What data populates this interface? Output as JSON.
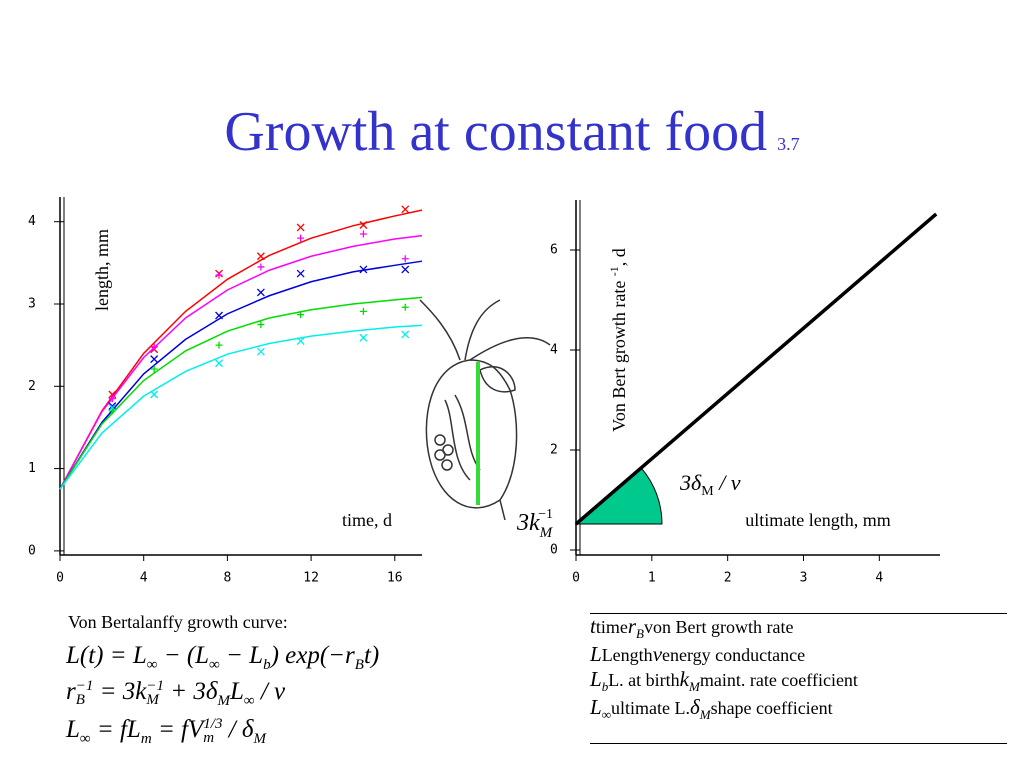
{
  "title": "Growth at constant food",
  "title_note": "3.7",
  "chart_data": [
    {
      "type": "scatter",
      "x_label": "time, d",
      "y_label": "length, mm",
      "xlim": [
        0,
        17.3
      ],
      "ylim": [
        -0.05,
        4.3
      ],
      "xticks": [
        0,
        4,
        8,
        12,
        16
      ],
      "yticks": [
        0,
        1,
        2,
        3,
        4
      ],
      "x": [
        2.5,
        4.5,
        7.6,
        9.6,
        11.5,
        14.5,
        16.5
      ],
      "fit_x": [
        0,
        2,
        4,
        6,
        8,
        10,
        12,
        14,
        16,
        17.3
      ],
      "series": [
        {
          "color": "#ff0000",
          "marker": "x",
          "values": [
            1.9,
            2.45,
            3.37,
            3.58,
            3.93,
            3.96,
            4.15
          ],
          "fit": [
            0.75,
            1.7,
            2.4,
            2.91,
            3.3,
            3.59,
            3.8,
            3.95,
            4.07,
            4.14
          ]
        },
        {
          "color": "#ff00ff",
          "marker": "+",
          "values": [
            1.85,
            2.48,
            3.35,
            3.45,
            3.8,
            3.85,
            3.55
          ],
          "fit": [
            0.75,
            1.69,
            2.35,
            2.83,
            3.17,
            3.41,
            3.58,
            3.7,
            3.79,
            3.83
          ]
        },
        {
          "color": "#0000dd",
          "marker": "x",
          "values": [
            1.76,
            2.33,
            2.86,
            3.14,
            3.37,
            3.42,
            3.42
          ],
          "fit": [
            0.75,
            1.56,
            2.15,
            2.57,
            2.88,
            3.1,
            3.27,
            3.39,
            3.47,
            3.52
          ]
        },
        {
          "color": "#00dd00",
          "marker": "+",
          "values": [
            1.7,
            2.21,
            2.5,
            2.75,
            2.87,
            2.91,
            2.96
          ],
          "fit": [
            0.75,
            1.54,
            2.07,
            2.43,
            2.67,
            2.83,
            2.93,
            3.0,
            3.05,
            3.08
          ]
        },
        {
          "color": "#00eeee",
          "marker": "x",
          "values": [
            1.74,
            1.9,
            2.28,
            2.42,
            2.55,
            2.59,
            2.63
          ],
          "fit": [
            0.75,
            1.43,
            1.88,
            2.18,
            2.39,
            2.52,
            2.61,
            2.67,
            2.72,
            2.74
          ]
        }
      ]
    },
    {
      "type": "line",
      "x_label": "ultimate length, mm",
      "y_label": [
        "Von Bert growth rate ",
        "-1",
        ", d"
      ],
      "xlim": [
        0,
        4.8
      ],
      "ylim": [
        -0.1,
        7
      ],
      "xticks": [
        0,
        1,
        2,
        3,
        4
      ],
      "yticks": [
        0,
        2,
        4,
        6
      ],
      "x": [
        0,
        4.75
      ],
      "series": [
        {
          "color": "#000000",
          "values": [
            0.52,
            6.72
          ]
        }
      ],
      "sector_color": "#00c98d",
      "annotations": [
        [
          "3δ",
          "M",
          " / v"
        ],
        [
          "3k",
          "M",
          "−1"
        ]
      ]
    }
  ],
  "caption": "Von Bertalanffy growth curve:",
  "equations": [
    [
      "L(t) = L",
      "∞",
      " − (L",
      "∞",
      " − L",
      "b",
      ") exp(−r",
      "B",
      "t)"
    ],
    [
      "r",
      "B",
      "−1",
      " = 3k",
      "M",
      "−1",
      " + 3δ",
      "M",
      "L",
      "∞",
      " / v"
    ],
    [
      "L",
      "∞",
      " = fL",
      "m",
      " = fV",
      "m",
      "1/3",
      " / δ",
      "M"
    ]
  ],
  "table": {
    "rows": [
      {
        "symbol": "t",
        "name": "time",
        "symbol2": "r",
        "symbol2_sub": "B",
        "name2": "von Bert growth rate"
      },
      {
        "symbol": "L",
        "name": "Length",
        "symbol2": "v",
        "name2": "energy conductance"
      },
      {
        "symbol": "L",
        "symbol_sub": "b",
        "name": "L. at birth",
        "symbol2": "k",
        "symbol2_sub": "M",
        "name2": "maint. rate coefficient"
      },
      {
        "symbol": "L",
        "symbol_sub": "∞",
        "name": "ultimate L.",
        "symbol2": "δ",
        "symbol2_sub": "M",
        "name2": "shape coefficient"
      }
    ]
  }
}
